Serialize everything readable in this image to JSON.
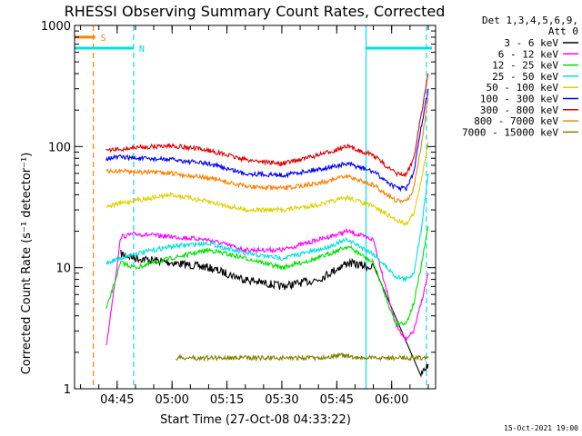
{
  "chart_data": {
    "type": "line",
    "title": "RHESSI Observing Summary Count Rates, Corrected",
    "xlabel": "Start Time (27-Oct-08 04:33:22)",
    "ylabel": "Corrected Count Rate (s⁻¹ detector⁻¹)",
    "y_scale": "log",
    "ylim": [
      1,
      1000
    ],
    "xlim": [
      "04:33:22",
      "06:12:00"
    ],
    "y_ticks": [
      "1",
      "10",
      "100",
      "1000"
    ],
    "x_ticks": [
      "04:45",
      "05:00",
      "05:15",
      "05:30",
      "05:45",
      "06:00"
    ],
    "legend_header": [
      "Det 1,3,4,5,6,9,",
      "Att 0"
    ],
    "legend_position": "right",
    "timestamp": "15-Oct-2021 19:00",
    "flags": [
      {
        "label": "S",
        "color": "#ff8000",
        "start": "04:33:22",
        "end": "04:39:00",
        "level": 800
      },
      {
        "label": "N",
        "color": "#00e0e0",
        "start": "04:33:22",
        "end": "04:49:30",
        "level": 650
      },
      {
        "label": "",
        "color": "#00e0e0",
        "start": "05:53:00",
        "end": "06:11:00",
        "level": 650
      }
    ],
    "vlines": [
      {
        "time": "04:38:30",
        "color": "#ff8000",
        "style": "dashed"
      },
      {
        "time": "04:49:30",
        "color": "#00e0e0",
        "style": "dashed"
      },
      {
        "time": "05:53:00",
        "color": "#00e0e0",
        "style": "solid"
      },
      {
        "time": "06:09:30",
        "color": "#00e0e0",
        "style": "dashed"
      }
    ],
    "series": [
      {
        "name": "3 - 6 keV",
        "color": "#000000",
        "x": [
          "04:46",
          "04:50",
          "05:00",
          "05:10",
          "05:20",
          "05:30",
          "05:40",
          "05:48",
          "05:55",
          "06:01",
          "06:04",
          "06:06",
          "06:08",
          "06:10"
        ],
        "values": [
          13,
          12,
          11,
          10,
          8,
          7,
          8,
          11,
          10,
          null,
          null,
          null,
          1.3,
          1.6
        ]
      },
      {
        "name": "6 - 12 keV",
        "color": "#ff00ff",
        "x": [
          "04:42",
          "04:46",
          "04:50",
          "05:00",
          "05:10",
          "05:20",
          "05:30",
          "05:40",
          "05:48",
          "05:55",
          "06:01",
          "06:04",
          "06:06",
          "06:08",
          "06:10"
        ],
        "values": [
          2.2,
          18,
          19,
          18,
          17,
          14,
          14,
          17,
          20,
          17,
          3.5,
          2.5,
          3,
          5,
          9
        ]
      },
      {
        "name": "12 - 25 keV",
        "color": "#00e000",
        "x": [
          "04:42",
          "04:46",
          "04:50",
          "05:00",
          "05:10",
          "05:20",
          "05:30",
          "05:40",
          "05:48",
          "05:55",
          "06:01",
          "06:04",
          "06:06",
          "06:08",
          "06:10"
        ],
        "values": [
          4.5,
          11,
          10,
          12,
          14,
          12,
          10,
          12,
          15,
          11,
          3.5,
          3.5,
          5,
          10,
          22
        ]
      },
      {
        "name": "25 - 50 keV",
        "color": "#00e0e0",
        "x": [
          "04:42",
          "04:46",
          "04:50",
          "05:00",
          "05:10",
          "05:20",
          "05:30",
          "05:40",
          "05:48",
          "05:55",
          "06:01",
          "06:04",
          "06:06",
          "06:08",
          "06:10"
        ],
        "values": [
          11,
          12,
          13,
          15,
          16,
          13,
          12,
          14,
          17,
          13,
          8.5,
          8,
          9,
          20,
          60
        ]
      },
      {
        "name": "50 - 100 keV",
        "color": "#e0d000",
        "x": [
          "04:42",
          "04:46",
          "04:50",
          "05:00",
          "05:10",
          "05:20",
          "05:30",
          "05:40",
          "05:48",
          "05:55",
          "06:01",
          "06:04",
          "06:06",
          "06:08",
          "06:10"
        ],
        "values": [
          32,
          34,
          36,
          40,
          35,
          30,
          30,
          33,
          38,
          32,
          25,
          23,
          28,
          50,
          110
        ]
      },
      {
        "name": "100 - 300 keV",
        "color": "#0000ff",
        "x": [
          "04:42",
          "04:46",
          "04:50",
          "05:00",
          "05:10",
          "05:20",
          "05:30",
          "05:40",
          "05:48",
          "05:55",
          "06:01",
          "06:04",
          "06:06",
          "06:08",
          "06:10"
        ],
        "values": [
          80,
          82,
          80,
          78,
          72,
          60,
          58,
          65,
          72,
          62,
          46,
          45,
          60,
          140,
          300
        ]
      },
      {
        "name": "300 - 800 keV",
        "color": "#e00000",
        "x": [
          "04:42",
          "04:46",
          "04:50",
          "05:00",
          "05:10",
          "05:20",
          "05:30",
          "05:40",
          "05:48",
          "05:55",
          "06:01",
          "06:04",
          "06:06",
          "06:08",
          "06:10"
        ],
        "values": [
          92,
          95,
          98,
          102,
          93,
          78,
          72,
          85,
          100,
          85,
          60,
          58,
          80,
          180,
          400
        ]
      },
      {
        "name": "800 - 7000 keV",
        "color": "#ff8000",
        "x": [
          "04:42",
          "04:46",
          "04:50",
          "05:00",
          "05:10",
          "05:20",
          "05:30",
          "05:40",
          "05:48",
          "05:55",
          "06:01",
          "06:04",
          "06:06",
          "06:08",
          "06:10"
        ],
        "values": [
          62,
          63,
          62,
          60,
          55,
          47,
          45,
          50,
          57,
          48,
          36,
          35,
          45,
          100,
          250
        ]
      },
      {
        "name": "7000 - 15000 keV",
        "color": "#808000",
        "x": [
          "05:01",
          "05:05",
          "05:40",
          "05:46",
          "05:50",
          "05:53",
          "06:10"
        ],
        "values": [
          1.8,
          1.8,
          1.8,
          1.9,
          1.8,
          1.8,
          1.8
        ]
      }
    ]
  }
}
